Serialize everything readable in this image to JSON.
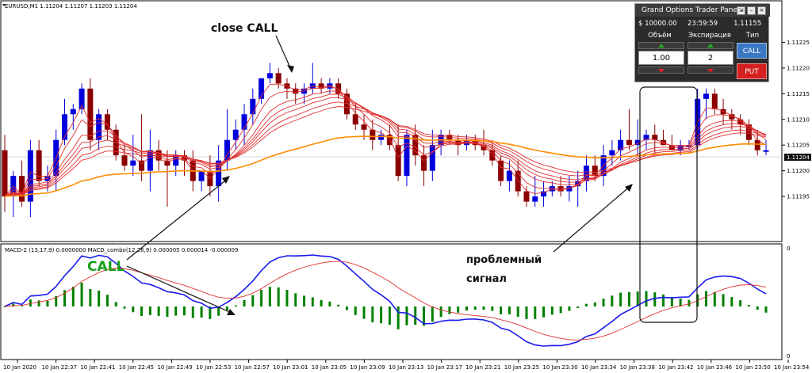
{
  "chart_header": "EURUSD,M1  1.11204 1.11207 1.11203 1.11204",
  "macd_header": "MACD-2 (13,17,9) 0.0000000  MACD_combo(12,26,9) 0.000005 0.000014 -0.000009",
  "annotations": {
    "close_call": "close CALL",
    "call": "CALL",
    "problem_line1": "проблемный",
    "problem_line2": "сигнал"
  },
  "panel": {
    "title": "Grand Options Trader Panel",
    "balance": "$ 10000.00",
    "timer": "23:59:59",
    "price": "1.11155",
    "volume_label": "Объём",
    "expiration_label": "Экспирация",
    "type_label": "Тип",
    "volume_value": "1.00",
    "expiration_value": "2",
    "call_label": "CALL",
    "put_label": "PUT"
  },
  "colors": {
    "bull": "#0000dd",
    "bear": "#8b0000",
    "ribbon": "#e03030",
    "ema_orange": "#ff8c00",
    "macd_blue": "#1a1aee",
    "signal_red": "#e03030",
    "hist_green": "#008000"
  },
  "chart_data": {
    "type": "candlestick",
    "symbol": "EURUSD",
    "timeframe": "M1",
    "price_axis": {
      "ticks": [
        "1.11225",
        "1.11220",
        "1.11215",
        "1.11210",
        "1.11205",
        "1.11200",
        "1.11195"
      ],
      "current_price": "1.11204",
      "range": [
        1.11187,
        1.11232
      ]
    },
    "time_axis": {
      "ticks": [
        "10 Jan 2020",
        "10 Jan 22:37",
        "10 Jan 22:41",
        "10 Jan 22:45",
        "10 Jan 22:49",
        "10 Jan 22:53",
        "10 Jan 22:57",
        "10 Jan 23:01",
        "10 Jan 23:05",
        "10 Jan 23:09",
        "10 Jan 23:13",
        "10 Jan 23:17",
        "10 Jan 23:21",
        "10 Jan 23:25",
        "10 Jan 23:30",
        "10 Jan 23:34",
        "10 Jan 23:38",
        "10 Jan 23:42",
        "10 Jan 23:46",
        "10 Jan 23:50",
        "10 Jan 23:54"
      ]
    },
    "candles": [
      {
        "o": 1.11204,
        "h": 1.11207,
        "l": 1.11192,
        "c": 1.11195
      },
      {
        "o": 1.11195,
        "h": 1.112,
        "l": 1.11191,
        "c": 1.11199
      },
      {
        "o": 1.11199,
        "h": 1.11202,
        "l": 1.11193,
        "c": 1.11194
      },
      {
        "o": 1.11194,
        "h": 1.11206,
        "l": 1.11191,
        "c": 1.11204
      },
      {
        "o": 1.11204,
        "h": 1.11206,
        "l": 1.11197,
        "c": 1.11198
      },
      {
        "o": 1.11198,
        "h": 1.11201,
        "l": 1.11196,
        "c": 1.11199
      },
      {
        "o": 1.11199,
        "h": 1.11208,
        "l": 1.11196,
        "c": 1.11206
      },
      {
        "o": 1.11206,
        "h": 1.11214,
        "l": 1.11205,
        "c": 1.11211
      },
      {
        "o": 1.11211,
        "h": 1.11213,
        "l": 1.11208,
        "c": 1.11212
      },
      {
        "o": 1.11212,
        "h": 1.11217,
        "l": 1.11211,
        "c": 1.11216
      },
      {
        "o": 1.11216,
        "h": 1.11218,
        "l": 1.11204,
        "c": 1.11206
      },
      {
        "o": 1.11206,
        "h": 1.11212,
        "l": 1.11204,
        "c": 1.11211
      },
      {
        "o": 1.11211,
        "h": 1.11212,
        "l": 1.11206,
        "c": 1.11208
      },
      {
        "o": 1.11208,
        "h": 1.11209,
        "l": 1.11202,
        "c": 1.11203
      },
      {
        "o": 1.11203,
        "h": 1.11205,
        "l": 1.112,
        "c": 1.11201
      },
      {
        "o": 1.11201,
        "h": 1.11207,
        "l": 1.11199,
        "c": 1.11202
      },
      {
        "o": 1.11202,
        "h": 1.11211,
        "l": 1.11198,
        "c": 1.112
      },
      {
        "o": 1.112,
        "h": 1.11208,
        "l": 1.11196,
        "c": 1.11204
      },
      {
        "o": 1.11204,
        "h": 1.11206,
        "l": 1.112,
        "c": 1.11202
      },
      {
        "o": 1.11202,
        "h": 1.11204,
        "l": 1.11193,
        "c": 1.11201
      },
      {
        "o": 1.11201,
        "h": 1.11204,
        "l": 1.11199,
        "c": 1.11203
      },
      {
        "o": 1.11203,
        "h": 1.11204,
        "l": 1.11199,
        "c": 1.11202
      },
      {
        "o": 1.11202,
        "h": 1.11204,
        "l": 1.11196,
        "c": 1.11198
      },
      {
        "o": 1.11198,
        "h": 1.112,
        "l": 1.11196,
        "c": 1.112
      },
      {
        "o": 1.112,
        "h": 1.11203,
        "l": 1.11195,
        "c": 1.11197
      },
      {
        "o": 1.11197,
        "h": 1.11205,
        "l": 1.11194,
        "c": 1.11202
      },
      {
        "o": 1.11202,
        "h": 1.11212,
        "l": 1.112,
        "c": 1.11206
      },
      {
        "o": 1.11206,
        "h": 1.1121,
        "l": 1.11204,
        "c": 1.11208
      },
      {
        "o": 1.11208,
        "h": 1.11213,
        "l": 1.11205,
        "c": 1.11211
      },
      {
        "o": 1.11211,
        "h": 1.11216,
        "l": 1.11209,
        "c": 1.11214
      },
      {
        "o": 1.11214,
        "h": 1.11218,
        "l": 1.11213,
        "c": 1.11218
      },
      {
        "o": 1.11218,
        "h": 1.11221,
        "l": 1.11217,
        "c": 1.11219
      },
      {
        "o": 1.11219,
        "h": 1.1122,
        "l": 1.11216,
        "c": 1.11217
      },
      {
        "o": 1.11217,
        "h": 1.11218,
        "l": 1.11214,
        "c": 1.11216
      },
      {
        "o": 1.11216,
        "h": 1.11217,
        "l": 1.11213,
        "c": 1.11215
      },
      {
        "o": 1.11215,
        "h": 1.11217,
        "l": 1.11213,
        "c": 1.11216
      },
      {
        "o": 1.11216,
        "h": 1.11221,
        "l": 1.11215,
        "c": 1.11217
      },
      {
        "o": 1.11217,
        "h": 1.11218,
        "l": 1.11215,
        "c": 1.11216
      },
      {
        "o": 1.11216,
        "h": 1.11218,
        "l": 1.11215,
        "c": 1.11217
      },
      {
        "o": 1.11217,
        "h": 1.11218,
        "l": 1.11214,
        "c": 1.11215
      },
      {
        "o": 1.11215,
        "h": 1.11216,
        "l": 1.1121,
        "c": 1.11211
      },
      {
        "o": 1.11211,
        "h": 1.11213,
        "l": 1.11208,
        "c": 1.11209
      },
      {
        "o": 1.11209,
        "h": 1.11211,
        "l": 1.11206,
        "c": 1.11208
      },
      {
        "o": 1.11208,
        "h": 1.1121,
        "l": 1.11204,
        "c": 1.11206
      },
      {
        "o": 1.11206,
        "h": 1.11208,
        "l": 1.11205,
        "c": 1.11207
      },
      {
        "o": 1.11207,
        "h": 1.11209,
        "l": 1.11204,
        "c": 1.11205
      },
      {
        "o": 1.11205,
        "h": 1.11209,
        "l": 1.11198,
        "c": 1.11199
      },
      {
        "o": 1.11199,
        "h": 1.11208,
        "l": 1.11197,
        "c": 1.11207
      },
      {
        "o": 1.11207,
        "h": 1.11209,
        "l": 1.11201,
        "c": 1.11203
      },
      {
        "o": 1.11203,
        "h": 1.11205,
        "l": 1.11197,
        "c": 1.112
      },
      {
        "o": 1.112,
        "h": 1.11208,
        "l": 1.11198,
        "c": 1.11205
      },
      {
        "o": 1.11205,
        "h": 1.11208,
        "l": 1.11203,
        "c": 1.11207
      },
      {
        "o": 1.11207,
        "h": 1.11208,
        "l": 1.11205,
        "c": 1.11206
      },
      {
        "o": 1.11206,
        "h": 1.11207,
        "l": 1.11203,
        "c": 1.11205
      },
      {
        "o": 1.11205,
        "h": 1.11207,
        "l": 1.11204,
        "c": 1.11206
      },
      {
        "o": 1.11206,
        "h": 1.11207,
        "l": 1.11204,
        "c": 1.11205
      },
      {
        "o": 1.11205,
        "h": 1.11208,
        "l": 1.11203,
        "c": 1.11204
      },
      {
        "o": 1.11204,
        "h": 1.11206,
        "l": 1.11201,
        "c": 1.11202
      },
      {
        "o": 1.11202,
        "h": 1.11203,
        "l": 1.11197,
        "c": 1.11198
      },
      {
        "o": 1.11198,
        "h": 1.11202,
        "l": 1.11196,
        "c": 1.112
      },
      {
        "o": 1.112,
        "h": 1.11202,
        "l": 1.11195,
        "c": 1.11196
      },
      {
        "o": 1.11196,
        "h": 1.11197,
        "l": 1.11193,
        "c": 1.11194
      },
      {
        "o": 1.11194,
        "h": 1.11199,
        "l": 1.11193,
        "c": 1.11195
      },
      {
        "o": 1.11195,
        "h": 1.11198,
        "l": 1.11193,
        "c": 1.11196
      },
      {
        "o": 1.11196,
        "h": 1.11198,
        "l": 1.11195,
        "c": 1.11197
      },
      {
        "o": 1.11197,
        "h": 1.11199,
        "l": 1.11195,
        "c": 1.11196
      },
      {
        "o": 1.11196,
        "h": 1.11199,
        "l": 1.11194,
        "c": 1.11197
      },
      {
        "o": 1.11197,
        "h": 1.112,
        "l": 1.11193,
        "c": 1.11198
      },
      {
        "o": 1.11198,
        "h": 1.11203,
        "l": 1.11196,
        "c": 1.11201
      },
      {
        "o": 1.11201,
        "h": 1.11203,
        "l": 1.11198,
        "c": 1.11199
      },
      {
        "o": 1.11199,
        "h": 1.11205,
        "l": 1.11197,
        "c": 1.11203
      },
      {
        "o": 1.11203,
        "h": 1.11206,
        "l": 1.11201,
        "c": 1.11204
      },
      {
        "o": 1.11204,
        "h": 1.11208,
        "l": 1.11202,
        "c": 1.11206
      },
      {
        "o": 1.11206,
        "h": 1.11212,
        "l": 1.11204,
        "c": 1.11205
      },
      {
        "o": 1.11205,
        "h": 1.1121,
        "l": 1.11203,
        "c": 1.11206
      },
      {
        "o": 1.11206,
        "h": 1.11208,
        "l": 1.11204,
        "c": 1.11207
      },
      {
        "o": 1.11207,
        "h": 1.11209,
        "l": 1.11203,
        "c": 1.11206
      },
      {
        "o": 1.11206,
        "h": 1.11208,
        "l": 1.11205,
        "c": 1.11205
      },
      {
        "o": 1.11205,
        "h": 1.11207,
        "l": 1.11204,
        "c": 1.11204
      },
      {
        "o": 1.11204,
        "h": 1.11206,
        "l": 1.11203,
        "c": 1.11205
      },
      {
        "o": 1.11205,
        "h": 1.11206,
        "l": 1.11204,
        "c": 1.11205
      },
      {
        "o": 1.11205,
        "h": 1.11216,
        "l": 1.11204,
        "c": 1.11214
      },
      {
        "o": 1.11214,
        "h": 1.11216,
        "l": 1.1121,
        "c": 1.11215
      },
      {
        "o": 1.11215,
        "h": 1.11216,
        "l": 1.11211,
        "c": 1.11212
      },
      {
        "o": 1.11212,
        "h": 1.11214,
        "l": 1.11209,
        "c": 1.11211
      },
      {
        "o": 1.11211,
        "h": 1.11212,
        "l": 1.11208,
        "c": 1.1121
      },
      {
        "o": 1.1121,
        "h": 1.11211,
        "l": 1.11207,
        "c": 1.11209
      },
      {
        "o": 1.11209,
        "h": 1.1121,
        "l": 1.11205,
        "c": 1.11206
      },
      {
        "o": 1.11206,
        "h": 1.11208,
        "l": 1.11203,
        "c": 1.11204
      },
      {
        "o": 1.11204,
        "h": 1.11206,
        "l": 1.11203,
        "c": 1.11204
      }
    ],
    "macd_axis_ticks": [
      "0",
      "0"
    ]
  }
}
